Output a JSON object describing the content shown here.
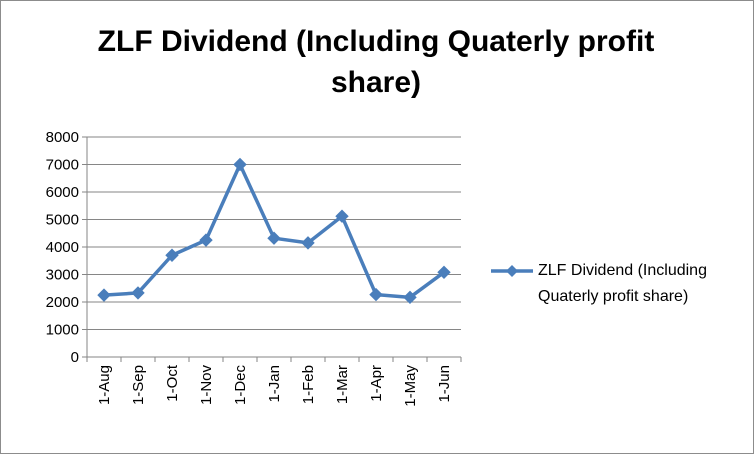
{
  "chart_data": {
    "type": "line",
    "title": "ZLF Dividend (Including Quaterly profit share)",
    "xlabel": "",
    "ylabel": "",
    "categories": [
      "1-Aug",
      "1-Sep",
      "1-Oct",
      "1-Nov",
      "1-Dec",
      "1-Jan",
      "1-Feb",
      "1-Mar",
      "1-Apr",
      "1-May",
      "1-Jun"
    ],
    "series": [
      {
        "name": "ZLF Dividend (Including Quaterly profit share)",
        "values": [
          2250,
          2330,
          3700,
          4250,
          7000,
          4320,
          4150,
          5120,
          2270,
          2170,
          3080
        ],
        "color": "#4a7ebb",
        "marker": "diamond"
      }
    ],
    "ylim": [
      0,
      8000
    ],
    "yticks": [
      0,
      1000,
      2000,
      3000,
      4000,
      5000,
      6000,
      7000,
      8000
    ],
    "grid": true,
    "legend": "right"
  }
}
